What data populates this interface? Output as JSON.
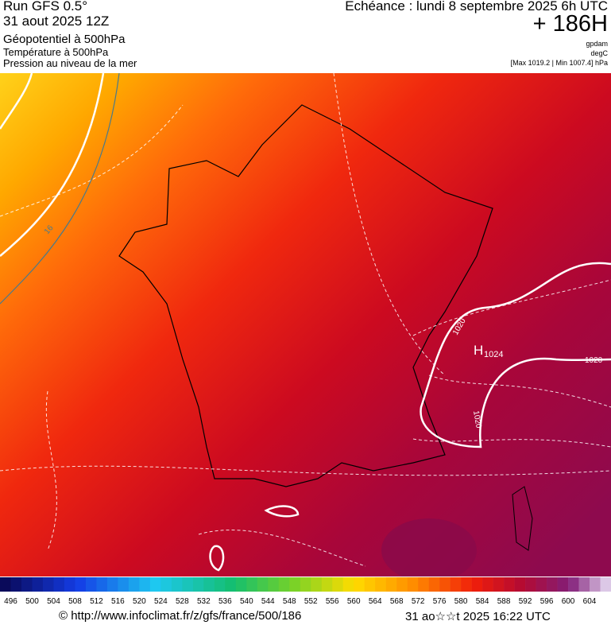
{
  "header": {
    "run": "Run GFS 0.5°",
    "date": "31 aout 2025 12Z",
    "field1": "Géopotentiel à 500hPa",
    "field2": "Température à 500hPa",
    "field3": "Pression au niveau de la mer",
    "valid": "Echéance : lundi 8 septembre 2025 6h UTC",
    "lead": "+ 186H",
    "unit1": "gpdam",
    "unit2": "degC",
    "range": "[Max 1019.2 | Min 1007.4] hPa"
  },
  "map_labels": {
    "temp_contour": "16",
    "isobar_1": "1020",
    "high": "H",
    "high_value": "1024",
    "isobar_2": "1020",
    "isobar_3": "1020"
  },
  "scale": {
    "labels": [
      496,
      500,
      504,
      508,
      512,
      516,
      520,
      524,
      528,
      532,
      536,
      540,
      544,
      548,
      552,
      556,
      560,
      564,
      568,
      572,
      576,
      580,
      584,
      588,
      592,
      596,
      600,
      604
    ]
  },
  "footer": {
    "url": "© http://www.infoclimat.fr/z/gfs/france/500/186",
    "timestamp": "31 ao☆☆t 2025 16:22 UTC"
  }
}
